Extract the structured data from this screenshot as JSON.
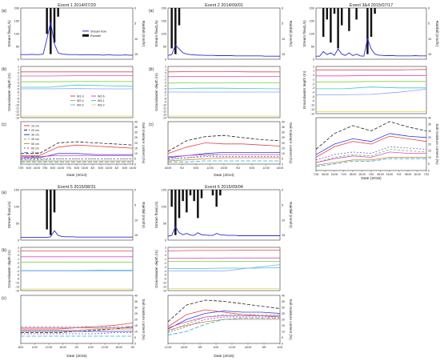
{
  "colors": {
    "stream": "#2b2bd6",
    "rain": "#111111",
    "gw": [
      "#e8434a",
      "#d94cc9",
      "#7dd23c",
      "#3cc7c9",
      "#8aa0ff",
      "#e6d84a"
    ],
    "soil": [
      "#e8434a",
      "#222222",
      "#2c3cd6",
      "#5cc35c",
      "#cc8833",
      "#8a4cc9",
      "#2aa6d6",
      "#d94cc9"
    ]
  },
  "gw_legend": [
    "W1-3",
    "W2-6",
    "W2-4",
    "W3-1",
    "W2-0",
    "W3-2"
  ],
  "soil_legend": [
    "10 cm",
    "20 cm",
    "30 cm",
    "40 cm",
    "50 cm",
    "60 cm",
    "70 cm",
    "80 cm"
  ],
  "chart_data": [
    {
      "type": "line",
      "event": "Event 1 2014/07/29",
      "panel_labels": [
        "(a)",
        "(b)",
        "(c)"
      ],
      "stream_ylabel": "Stream flow(L/s)",
      "rain_ylabel": "Rainfall (mm/hr)",
      "gw_ylabel": "Groundwater depth (m)",
      "soil_ylabel": "Soil moisture content (%)",
      "xlabel": "Date (2014)",
      "legend": [
        "Stream flow",
        "Rainfall"
      ],
      "stream_ticks": [
        "200",
        "150",
        "100",
        "50",
        "0"
      ],
      "rain_ticks": [
        "0",
        "5",
        "10",
        "15"
      ],
      "gw_ticks": [
        "2",
        "1",
        "0",
        "-1",
        "-2",
        "-3",
        "-4",
        "-5",
        "-6",
        "-7",
        "-8",
        "-9",
        "-10",
        "-11",
        "-12",
        "-13",
        "-14"
      ],
      "soil_ticks_right": [
        "40",
        "35",
        "30",
        "25",
        "20",
        "15",
        "10",
        "5",
        "0"
      ],
      "x_ticks": [
        "7/29",
        "8:00",
        "16:00",
        "7/30",
        "8:00",
        "16:00",
        "7/31",
        "8:00",
        "16:00",
        "8/1",
        "8:00",
        "16:00",
        "8/2",
        "8:00",
        "16:00"
      ],
      "stream_values": [
        18,
        18,
        18,
        19,
        18,
        18,
        20,
        80,
        145,
        60,
        25,
        20,
        19,
        18,
        18,
        18,
        17,
        17,
        18,
        17,
        17,
        17,
        16,
        17,
        17,
        16,
        16,
        16,
        17,
        16,
        16
      ],
      "rain_values": [
        0,
        0,
        0,
        0,
        0,
        0,
        0,
        9,
        16,
        12,
        3,
        0,
        0,
        0,
        0,
        0,
        0,
        0,
        0,
        0,
        0,
        0,
        0,
        0,
        0,
        0,
        0,
        0,
        0,
        0,
        0
      ],
      "gw_series": [
        [
          0.3,
          0.3,
          0.3,
          0.3,
          0.3
        ],
        [
          -1.0,
          -1.0,
          -0.9,
          -0.9,
          -0.9
        ],
        [
          -2.8,
          -2.8,
          -2.7,
          -2.7,
          -2.7
        ],
        [
          -4.5,
          -4.5,
          -3.8,
          -4.0,
          -4.2
        ],
        [
          -5.0,
          -5.0,
          -4.9,
          -5.0,
          -5.0
        ],
        [
          -13.5,
          -13.5,
          -13.5,
          -13.5,
          -13.5
        ]
      ],
      "soil_series": [
        [
          8,
          8,
          16,
          18,
          17,
          16,
          15
        ],
        [
          10,
          10,
          20,
          21,
          20,
          19,
          18
        ],
        [
          6,
          6,
          10,
          10,
          9,
          9,
          9
        ],
        [
          4,
          4,
          5,
          5,
          5,
          5,
          5
        ],
        [
          3,
          3,
          3,
          3,
          3,
          3,
          3
        ],
        [
          5,
          5,
          5,
          5,
          5,
          5,
          5
        ],
        [
          2,
          2,
          2,
          2,
          2,
          2,
          2
        ],
        [
          7,
          7,
          8,
          8,
          8,
          8,
          8
        ]
      ]
    },
    {
      "type": "line",
      "event": "Event 2 2014/09/01",
      "panel_labels": [
        "(a)",
        "(b)",
        "(c)"
      ],
      "stream_ylabel": "Stream flow(L/s)",
      "rain_ylabel": "Rainfall (mm/hr)",
      "gw_ylabel": "Groundwater depth (m)",
      "soil_ylabel": "Soil moisture content (%)",
      "xlabel": "Date (2014)",
      "stream_ticks": [
        "200",
        "150",
        "100",
        "50",
        "0"
      ],
      "rain_ticks": [
        "0",
        "5",
        "10",
        "15"
      ],
      "gw_ticks": [
        "2",
        "1",
        "0",
        "-1",
        "-2",
        "-3",
        "-4",
        "-5",
        "-6",
        "-7",
        "-8",
        "-9",
        "-10",
        "-11",
        "-12",
        "-13",
        "-14"
      ],
      "soil_ticks_right": [
        "40",
        "35",
        "30",
        "25",
        "20",
        "15",
        "10",
        "5",
        "0"
      ],
      "x_ticks": [
        "18:00",
        "9/2",
        "6:00",
        "12:00",
        "18:00",
        "9/3",
        "6:00",
        "12:00",
        "18:00"
      ],
      "stream_values": [
        15,
        18,
        55,
        40,
        25,
        20,
        18,
        17,
        16,
        16,
        15,
        15,
        15,
        14,
        14,
        14,
        14,
        14,
        13,
        13,
        13,
        13,
        13,
        13,
        13,
        13,
        12,
        12,
        12,
        12,
        12
      ],
      "rain_values": [
        0,
        14,
        16,
        6,
        0,
        0,
        0,
        0,
        0,
        0,
        0,
        0,
        0,
        0,
        0,
        0,
        0,
        0,
        0,
        0,
        0,
        0,
        0,
        0,
        0,
        0,
        0,
        0,
        0,
        0,
        0
      ],
      "gw_series": [
        [
          0.3,
          0.4,
          0.4,
          0.3,
          0.3
        ],
        [
          -1.2,
          -1.1,
          -1.1,
          -1.1,
          -1.1
        ],
        [
          -3.2,
          -3.1,
          -3.1,
          -3.1,
          -3.1
        ],
        [
          -5.0,
          -4.8,
          -4.8,
          -4.9,
          -5.0
        ],
        [
          -6.0,
          -6.0,
          -6.0,
          -6.0,
          -6.0
        ],
        [
          -13.5,
          -13.5,
          -13.5,
          -13.5,
          -13.5
        ]
      ],
      "soil_series": [
        [
          10,
          16,
          20,
          19,
          19,
          18,
          17
        ],
        [
          12,
          22,
          26,
          27,
          25,
          23,
          22
        ],
        [
          6,
          8,
          10,
          11,
          11,
          11,
          11
        ],
        [
          4,
          6,
          8,
          9,
          9,
          9,
          9
        ],
        [
          3,
          4,
          5,
          6,
          6,
          6,
          6
        ],
        [
          5,
          6,
          7,
          7,
          7,
          7,
          7
        ],
        [
          2,
          2,
          3,
          3,
          3,
          3,
          3
        ],
        [
          7,
          8,
          9,
          9,
          9,
          9,
          9
        ]
      ]
    },
    {
      "type": "line",
      "event": "Event 3&4 2015/07/17",
      "panel_labels": [
        "",
        "",
        ""
      ],
      "stream_ylabel": "Stream flow(L/s)",
      "rain_ylabel": "Rainfall (mm/hr)",
      "gw_ylabel": "Groundwater depth (m)",
      "soil_ylabel": "Soil moisture content (%)",
      "xlabel": "Date (2015)",
      "stream_ticks": [
        "200",
        "150",
        "100",
        "50",
        "0"
      ],
      "rain_ticks": [
        "0",
        "5",
        "10",
        "15"
      ],
      "gw_ticks": [
        "2",
        "1",
        "0",
        "-1",
        "-2",
        "-3",
        "-4",
        "-5",
        "-6",
        "-12",
        "-13",
        "-14"
      ],
      "soil_ticks_right": [
        "40",
        "35",
        "30",
        "25",
        "20",
        "15",
        "10",
        "5",
        "0"
      ],
      "x_ticks": [
        "7/18",
        "08:00",
        "16:00",
        "7/19",
        "08:00",
        "16:00",
        "7/20",
        "08:00",
        "16:00",
        "7/21",
        "08:00",
        "16:00",
        "7/22"
      ],
      "stream_values": [
        12,
        12,
        30,
        18,
        25,
        15,
        40,
        20,
        15,
        25,
        14,
        20,
        13,
        12,
        80,
        40,
        20,
        16,
        15,
        14,
        14,
        14,
        13,
        13,
        13,
        13,
        13,
        14,
        13,
        13,
        13
      ],
      "rain_values": [
        0,
        0,
        10,
        4,
        12,
        2,
        14,
        6,
        0,
        8,
        0,
        4,
        0,
        0,
        16,
        10,
        2,
        0,
        0,
        0,
        0,
        0,
        0,
        0,
        0,
        0,
        0,
        0,
        0,
        0,
        0
      ],
      "gw_series": [
        [
          1.2,
          1.2,
          1.2,
          1.2,
          1.3
        ],
        [
          -0.2,
          -0.2,
          -0.1,
          -0.1,
          -0.1
        ],
        [
          -1.6,
          -1.6,
          -1.5,
          -1.5,
          -1.5
        ],
        [
          -3.2,
          -3.2,
          -2.8,
          -3.0,
          -3.0
        ],
        [
          -4.6,
          -4.6,
          -4.5,
          -4.0,
          -3.3
        ],
        [
          -13.5,
          -13.5,
          -13.5,
          -13.5,
          -13.5
        ]
      ],
      "soil_series": [
        [
          10,
          18,
          22,
          20,
          26,
          24,
          22
        ],
        [
          16,
          28,
          34,
          30,
          37,
          33,
          30
        ],
        [
          12,
          20,
          24,
          22,
          28,
          26,
          25
        ],
        [
          6,
          10,
          12,
          11,
          16,
          15,
          14
        ],
        [
          4,
          6,
          8,
          8,
          10,
          10,
          10
        ],
        [
          8,
          12,
          14,
          13,
          18,
          17,
          16
        ],
        [
          3,
          5,
          7,
          7,
          9,
          9,
          9
        ],
        [
          6,
          9,
          11,
          10,
          14,
          13,
          13
        ]
      ]
    },
    {
      "type": "line",
      "event": "Event 5 2015/08/31",
      "panel_labels": [
        "(a)",
        "(b)",
        "(c)"
      ],
      "stream_ylabel": "Stream flow(L/s)",
      "rain_ylabel": "Rainfall (mm/hr)",
      "gw_ylabel": "Groundwater depth (m)",
      "soil_ylabel": "Soil moisture content (%)",
      "xlabel": "Date (2015)",
      "stream_ticks": [
        "150",
        "100",
        "50",
        "0"
      ],
      "rain_ticks": [
        "0",
        "5",
        "10",
        "15"
      ],
      "gw_ticks": [
        "2",
        "1",
        "0",
        "-1",
        "-2",
        "-3",
        "-4",
        "-5",
        "-6",
        "-12",
        "-13",
        "-14"
      ],
      "soil_ticks_right": [
        "40",
        "35",
        "30",
        "25",
        "20",
        "15",
        "10",
        "5",
        "0"
      ],
      "x_ticks": [
        "8/31",
        "6:00",
        "12:00",
        "18:00",
        "9/1",
        "6:00",
        "12:00",
        "18:00",
        "9/2"
      ],
      "stream_values": [
        8,
        8,
        8,
        8,
        8,
        8,
        8,
        8,
        10,
        28,
        14,
        11,
        10,
        10,
        10,
        9,
        9,
        9,
        9,
        9,
        9,
        9,
        9,
        9,
        9,
        9,
        9,
        9,
        9,
        9,
        9
      ],
      "rain_values": [
        0,
        0,
        0,
        0,
        0,
        0,
        0,
        14,
        16,
        8,
        0,
        0,
        0,
        0,
        0,
        0,
        0,
        0,
        0,
        0,
        0,
        0,
        0,
        0,
        0,
        0,
        0,
        0,
        0,
        0,
        0
      ],
      "gw_series": [
        [
          1.1,
          1.1,
          1.1,
          1.1,
          1.1
        ],
        [
          -0.4,
          -0.4,
          -0.4,
          -0.4,
          -0.4
        ],
        [
          -1.8,
          -1.8,
          -1.8,
          -1.8,
          -1.8
        ],
        [
          -3.9,
          -3.9,
          -3.9,
          -3.8,
          -3.8
        ],
        [
          -4.0,
          -4.0,
          -4.0,
          -4.0,
          -4.0
        ],
        [
          -13.6,
          -13.6,
          -13.6,
          -13.6,
          -13.6
        ]
      ],
      "soil_series": [
        [
          12,
          12,
          12,
          13,
          14,
          15,
          17
        ],
        [
          9,
          9,
          9,
          10,
          11,
          12,
          14
        ],
        [
          10,
          10,
          10,
          10,
          10,
          10,
          10
        ],
        [
          14,
          14,
          14,
          14,
          14,
          14,
          14
        ],
        [
          11,
          11,
          11,
          11,
          12,
          12,
          12
        ],
        [
          8,
          8,
          8,
          8,
          8,
          9,
          9
        ],
        [
          6,
          6,
          6,
          6,
          6,
          6,
          6
        ],
        [
          13,
          13,
          13,
          13,
          13,
          13,
          13
        ]
      ]
    },
    {
      "type": "line",
      "event": "Event 6 2015/09/04",
      "panel_labels": [
        "",
        "",
        ""
      ],
      "stream_ylabel": "Stream flow(L/s)",
      "rain_ylabel": "Rainfall (mm/hr)",
      "gw_ylabel": "Groundwater depth (m)",
      "soil_ylabel": "Soil moisture content (%)",
      "xlabel": "Date (2015)",
      "stream_ticks": [
        "150",
        "100",
        "50",
        "0"
      ],
      "rain_ticks": [
        "0",
        "5",
        "10",
        "15"
      ],
      "gw_ticks": [
        "2",
        "1",
        "0",
        "-1",
        "-2",
        "-3",
        "-4",
        "-5",
        "-6",
        "-12",
        "-13",
        "-14"
      ],
      "soil_ticks_right": [
        "40",
        "35",
        "30",
        "25",
        "20",
        "15",
        "10",
        "5",
        "0"
      ],
      "x_ticks": [
        "12:00",
        "18:00",
        "9/5",
        "6:00",
        "12:00",
        "18:00",
        "9/6",
        "6:00"
      ],
      "stream_values": [
        12,
        14,
        40,
        22,
        16,
        20,
        15,
        14,
        22,
        16,
        15,
        14,
        14,
        20,
        16,
        15,
        14,
        14,
        14,
        13,
        13,
        13,
        13,
        13,
        13,
        13,
        13,
        13,
        13,
        13,
        13
      ],
      "rain_values": [
        0,
        6,
        16,
        10,
        4,
        8,
        2,
        4,
        10,
        3,
        0,
        0,
        2,
        6,
        2,
        0,
        0,
        0,
        0,
        0,
        0,
        0,
        0,
        0,
        0,
        0,
        0,
        0,
        0,
        0,
        0
      ],
      "gw_series": [
        [
          1.1,
          1.2,
          1.2,
          1.3,
          1.3
        ],
        [
          -0.8,
          -0.8,
          -0.7,
          -0.7,
          -0.7
        ],
        [
          -1.6,
          -1.6,
          -1.6,
          -1.6,
          -1.6
        ],
        [
          -3.4,
          -3.4,
          -3.3,
          -3.3,
          -3.2
        ],
        [
          -4.0,
          -4.0,
          -4.0,
          -3.2,
          -2.4
        ],
        [
          -13.5,
          -13.5,
          -13.5,
          -13.5,
          -13.5
        ]
      ],
      "soil_series": [
        [
          14,
          24,
          28,
          26,
          24,
          23,
          22
        ],
        [
          18,
          32,
          36,
          35,
          33,
          31,
          29
        ],
        [
          12,
          20,
          25,
          27,
          26,
          26,
          25
        ],
        [
          10,
          16,
          22,
          24,
          24,
          24,
          24
        ],
        [
          11,
          15,
          18,
          20,
          20,
          20,
          20
        ],
        [
          9,
          14,
          20,
          22,
          22,
          22,
          22
        ],
        [
          7,
          10,
          16,
          20,
          21,
          21,
          21
        ],
        [
          13,
          18,
          22,
          23,
          23,
          23,
          23
        ]
      ]
    }
  ]
}
